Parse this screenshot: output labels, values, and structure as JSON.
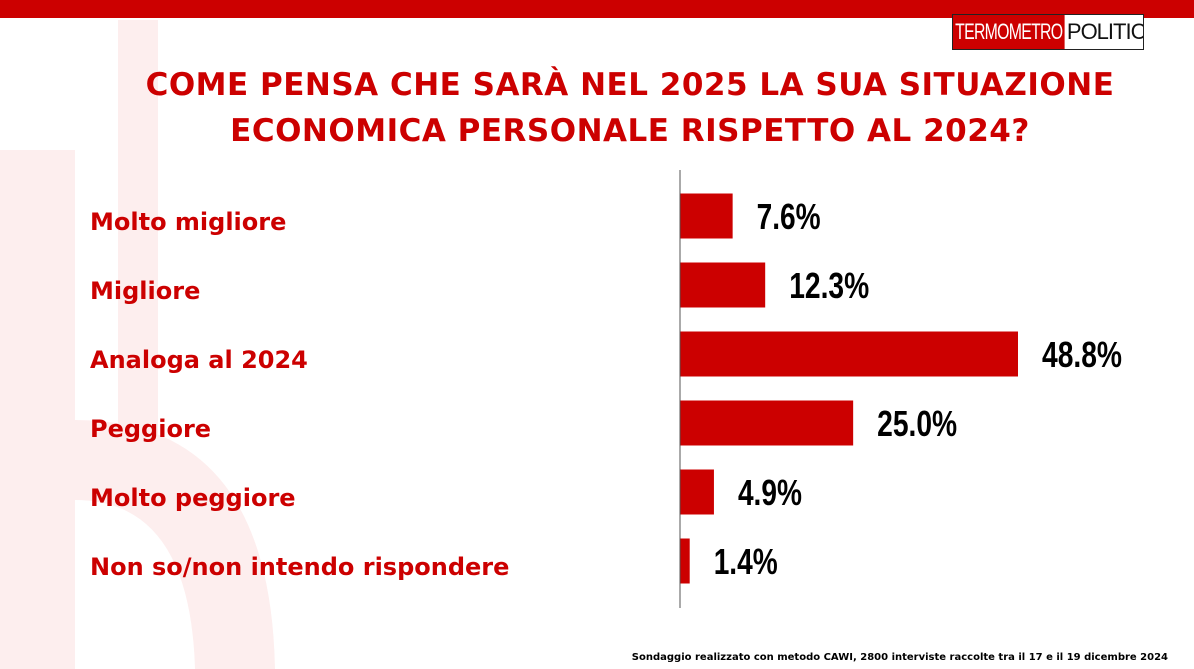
{
  "brand": {
    "logo_part1": "TERMOMETRO",
    "logo_part2": "POLITICO",
    "accent_color": "#cc0000"
  },
  "chart_data": {
    "type": "bar",
    "orientation": "horizontal",
    "title": "COME PENSA CHE SARÀ NEL 2025 LA SUA SITUAZIONE ECONOMICA PERSONALE RISPETTO AL 2024?",
    "title_lines": [
      "COME PENSA CHE SARÀ NEL 2025 LA SUA SITUAZIONE",
      "ECONOMICA PERSONALE RISPETTO AL 2024?"
    ],
    "categories": [
      "Molto migliore",
      "Migliore",
      "Analoga al 2024",
      "Peggiore",
      "Molto peggiore",
      "Non so/non intendo rispondere"
    ],
    "values": [
      7.6,
      12.3,
      48.8,
      25.0,
      4.9,
      1.4
    ],
    "value_labels": [
      "7.6%",
      "12.3%",
      "48.8%",
      "25.0%",
      "4.9%",
      "1.4%"
    ],
    "bar_color": "#cc0000",
    "xlim": [
      0,
      48.8
    ],
    "grid": false,
    "legend": "none"
  },
  "footnote": "Sondaggio realizzato con metodo CAWI, 2800 interviste raccolte tra il 17 e il 19 dicembre 2024"
}
